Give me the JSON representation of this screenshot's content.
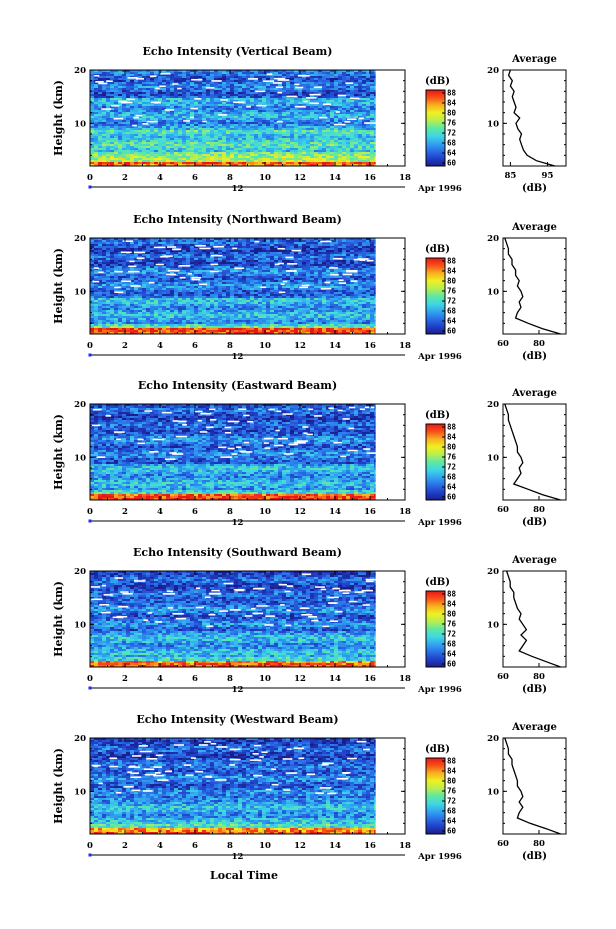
{
  "date_label": "Apr 1996",
  "x_axis_label": "Local Time",
  "mid_label": "12",
  "colorbar_unit": "(dB)",
  "colorbar_ticks": [
    "88",
    "84",
    "80",
    "76",
    "72",
    "68",
    "64",
    "60"
  ],
  "avg_title": "Average",
  "avg_unit": "(dB)",
  "colors": {
    "colormap": [
      "#1a1e8c",
      "#2040c8",
      "#2a70e8",
      "#30a8f0",
      "#40d8e0",
      "#60e8a0",
      "#b8ee50",
      "#f0f020",
      "#f8b020",
      "#f85018",
      "#e81818"
    ],
    "axis": "#000000",
    "dropout": "#ffffff"
  },
  "chart_data": [
    {
      "type": "heatmap",
      "title": "Echo Intensity (Vertical Beam)",
      "xlabel": "",
      "ylabel": "Height (km)",
      "xlim": [
        0,
        18
      ],
      "ylim": [
        2,
        20
      ],
      "xticks": [
        "0",
        "2",
        "4",
        "6",
        "8",
        "10",
        "12",
        "14",
        "16",
        "18"
      ],
      "yticks": [
        "20",
        "10"
      ],
      "data_end_hour": 16.3,
      "colorbar": {
        "min": 60,
        "max": 88,
        "label": "(dB)"
      },
      "profile": {
        "title": "Average",
        "xlabel": "(dB)",
        "xticks": [
          "85",
          "95"
        ],
        "xlim": [
          83,
          100
        ],
        "ylim": [
          2,
          20
        ],
        "height_km": [
          2,
          3,
          4,
          5,
          6,
          7,
          8,
          9,
          10,
          11,
          12,
          13,
          14,
          15,
          16,
          17,
          18,
          19,
          20
        ],
        "values": [
          97,
          92,
          89.5,
          88.5,
          88,
          87.5,
          88,
          87,
          86.5,
          87.5,
          86,
          86.5,
          86,
          85.5,
          86,
          85,
          85.5,
          84.5,
          85
        ]
      }
    },
    {
      "type": "heatmap",
      "title": "Echo Intensity (Northward Beam)",
      "xlabel": "",
      "ylabel": "Height (km)",
      "xlim": [
        0,
        18
      ],
      "ylim": [
        2,
        20
      ],
      "xticks": [
        "0",
        "2",
        "4",
        "6",
        "8",
        "10",
        "12",
        "14",
        "16",
        "18"
      ],
      "yticks": [
        "20",
        "10"
      ],
      "data_end_hour": 16.3,
      "colorbar": {
        "min": 60,
        "max": 88,
        "label": "(dB)"
      },
      "profile": {
        "title": "Average",
        "xlabel": "(dB)",
        "xticks": [
          "60",
          "80"
        ],
        "xlim": [
          60,
          95
        ],
        "ylim": [
          2,
          20
        ],
        "height_km": [
          2,
          3,
          4,
          5,
          6,
          7,
          8,
          9,
          10,
          11,
          12,
          13,
          14,
          15,
          16,
          17,
          18,
          19,
          20
        ],
        "values": [
          92,
          82,
          74,
          67,
          68,
          70,
          69,
          71,
          70,
          68,
          69,
          67,
          67,
          65,
          65,
          63,
          63,
          62,
          61
        ]
      }
    },
    {
      "type": "heatmap",
      "title": "Echo Intensity (Eastward Beam)",
      "xlabel": "",
      "ylabel": "Height (km)",
      "xlim": [
        0,
        18
      ],
      "ylim": [
        2,
        20
      ],
      "xticks": [
        "0",
        "2",
        "4",
        "6",
        "8",
        "10",
        "12",
        "14",
        "16",
        "18"
      ],
      "yticks": [
        "20",
        "10"
      ],
      "data_end_hour": 16.3,
      "colorbar": {
        "min": 60,
        "max": 88,
        "label": "(dB)"
      },
      "profile": {
        "title": "Average",
        "xlabel": "(dB)",
        "xticks": [
          "60",
          "80"
        ],
        "xlim": [
          60,
          95
        ],
        "ylim": [
          2,
          20
        ],
        "height_km": [
          2,
          3,
          4,
          5,
          6,
          7,
          8,
          9,
          10,
          11,
          12,
          13,
          14,
          15,
          16,
          17,
          18,
          19,
          20
        ],
        "values": [
          92,
          82,
          74,
          66,
          68,
          70,
          69,
          71,
          70,
          68,
          68,
          67,
          66,
          65,
          64,
          63,
          63,
          62,
          61
        ]
      }
    },
    {
      "type": "heatmap",
      "title": "Echo Intensity (Southward Beam)",
      "xlabel": "",
      "ylabel": "Height (km)",
      "xlim": [
        0,
        18
      ],
      "ylim": [
        2,
        20
      ],
      "xticks": [
        "0",
        "2",
        "4",
        "6",
        "8",
        "10",
        "12",
        "14",
        "16",
        "18"
      ],
      "yticks": [
        "20",
        "10"
      ],
      "data_end_hour": 16.3,
      "colorbar": {
        "min": 60,
        "max": 88,
        "label": "(dB)"
      },
      "profile": {
        "title": "Average",
        "xlabel": "(dB)",
        "xticks": [
          "60",
          "80"
        ],
        "xlim": [
          60,
          95
        ],
        "ylim": [
          2,
          20
        ],
        "height_km": [
          2,
          3,
          4,
          5,
          6,
          7,
          8,
          9,
          10,
          11,
          12,
          13,
          14,
          15,
          16,
          17,
          18,
          19,
          20
        ],
        "values": [
          92,
          84,
          76,
          69,
          71,
          73,
          70,
          73,
          71,
          69,
          70,
          68,
          67,
          66,
          66,
          64,
          64,
          63,
          62
        ]
      }
    },
    {
      "type": "heatmap",
      "title": "Echo Intensity (Westward Beam)",
      "xlabel": "",
      "ylabel": "Height (km)",
      "xlim": [
        0,
        18
      ],
      "ylim": [
        2,
        20
      ],
      "xticks": [
        "0",
        "2",
        "4",
        "6",
        "8",
        "10",
        "12",
        "14",
        "16",
        "18"
      ],
      "yticks": [
        "20",
        "10"
      ],
      "data_end_hour": 16.3,
      "colorbar": {
        "min": 60,
        "max": 88,
        "label": "(dB)"
      },
      "profile": {
        "title": "Average",
        "xlabel": "(dB)",
        "xticks": [
          "60",
          "80"
        ],
        "xlim": [
          60,
          95
        ],
        "ylim": [
          2,
          20
        ],
        "height_km": [
          2,
          3,
          4,
          5,
          6,
          7,
          8,
          9,
          10,
          11,
          12,
          13,
          14,
          15,
          16,
          17,
          18,
          19,
          20
        ],
        "values": [
          92,
          84,
          75,
          68,
          69,
          71,
          69,
          71,
          70,
          68,
          68,
          67,
          66,
          65,
          65,
          63,
          63,
          62,
          61
        ]
      }
    }
  ]
}
